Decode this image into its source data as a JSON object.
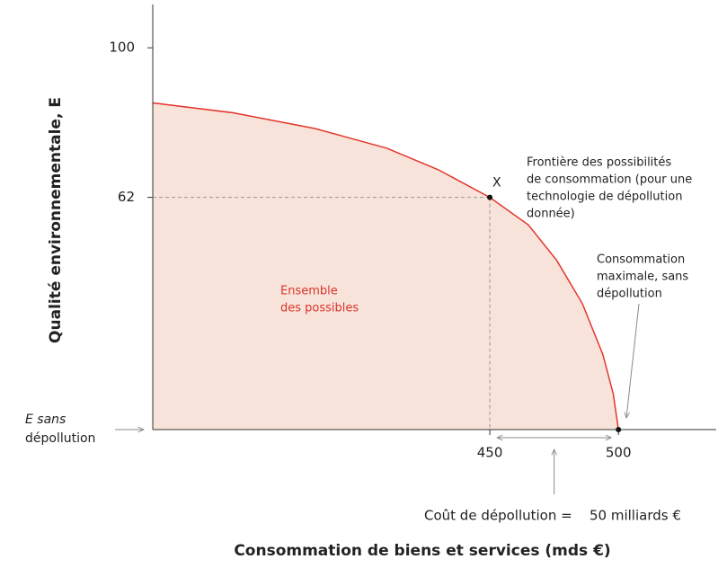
{
  "chart_data": {
    "type": "area",
    "xlabel": "Consommation de biens et services (mds €)",
    "ylabel": "Qualité environnementale, E",
    "xlim": [
      319,
      538
    ],
    "ylim": [
      3,
      111
    ],
    "xticks": [
      450,
      500
    ],
    "yticks": [
      62,
      100
    ],
    "series": [
      {
        "name": "Frontière des possibilités",
        "color": "#e2362c",
        "fill": "#f8e3da",
        "x": [
          319,
          350,
          382,
          410,
          430,
          450,
          465,
          476,
          486,
          494,
          498,
          500
        ],
        "values": [
          86,
          83.5,
          79.5,
          74.5,
          69,
          62,
          55,
          46,
          35,
          22,
          12,
          3
        ]
      }
    ],
    "points": [
      {
        "label": "X",
        "x": 450,
        "y": 62
      },
      {
        "x": 500,
        "y": 3
      }
    ],
    "annotations": {
      "frontier": [
        "Frontière des possibilités",
        "de consommation (pour une",
        "technologie de dépollution",
        "donnée)"
      ],
      "feasible": [
        "Ensemble",
        "des possibles"
      ],
      "max_consumption": [
        "Consommation",
        "maximale, sans",
        "dépollution"
      ],
      "e_baseline": [
        "E sans",
        "dépollution"
      ],
      "cost": "Coût de dépollution =",
      "cost_value": "50 milliards €"
    }
  }
}
